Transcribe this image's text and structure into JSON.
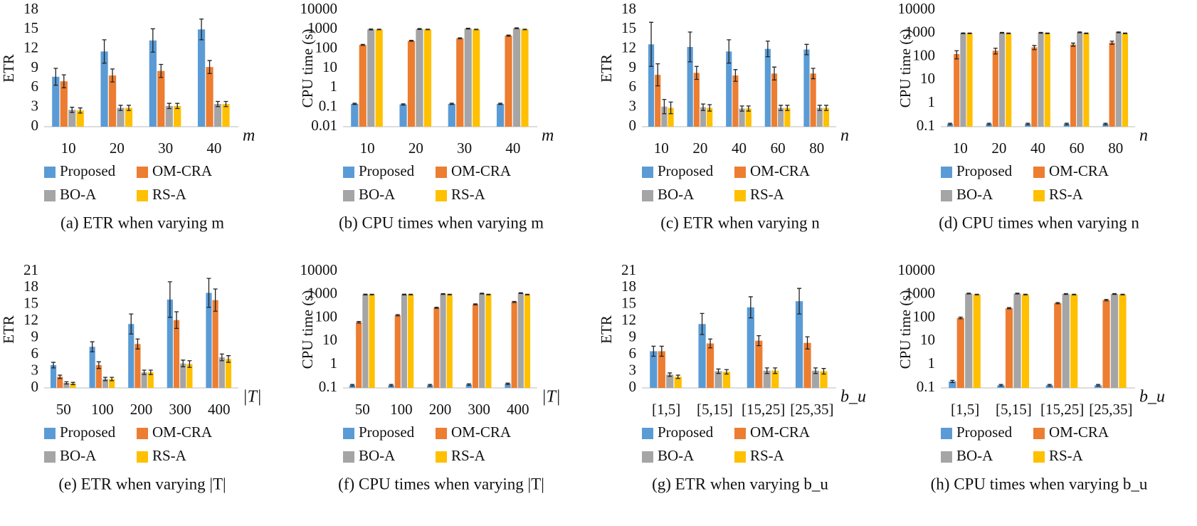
{
  "chart_data": [
    {
      "type": "bar",
      "caption": "(a) ETR when varying m",
      "ylabel": "ETR",
      "xlabel": "m",
      "log_scale": false,
      "categories": [
        "10",
        "20",
        "30",
        "40"
      ],
      "ylim": [
        0,
        18
      ],
      "yticks": [
        0,
        3,
        6,
        9,
        12,
        15,
        18
      ],
      "series": [
        {
          "name": "Proposed",
          "color": "#5b9bd5",
          "values": [
            7.7,
            11.6,
            13.3,
            15.0
          ],
          "errors": [
            1.3,
            1.8,
            1.8,
            1.6
          ]
        },
        {
          "name": "OM-CRA",
          "color": "#ed7d31",
          "values": [
            7.0,
            7.9,
            8.6,
            9.2
          ],
          "errors": [
            1.0,
            1.0,
            1.0,
            1.0
          ]
        },
        {
          "name": "BO-A",
          "color": "#a5a5a5",
          "values": [
            2.6,
            2.9,
            3.2,
            3.5
          ],
          "errors": [
            0.4,
            0.4,
            0.4,
            0.4
          ]
        },
        {
          "name": "RS-A",
          "color": "#ffc000",
          "values": [
            2.5,
            2.9,
            3.2,
            3.5
          ],
          "errors": [
            0.4,
            0.4,
            0.4,
            0.4
          ]
        }
      ]
    },
    {
      "type": "bar",
      "caption": "(b) CPU times when varying m",
      "ylabel": "CPU time (s)",
      "xlabel": "m",
      "log_scale": true,
      "categories": [
        "10",
        "20",
        "30",
        "40"
      ],
      "ylim": [
        0.01,
        10000
      ],
      "yticks": [
        0.01,
        0.1,
        1,
        10,
        100,
        1000,
        10000
      ],
      "series": [
        {
          "name": "Proposed",
          "color": "#5b9bd5",
          "values": [
            0.15,
            0.14,
            0.15,
            0.15
          ],
          "errors": [
            0.01,
            0.01,
            0.01,
            0.01
          ]
        },
        {
          "name": "OM-CRA",
          "color": "#ed7d31",
          "values": [
            160,
            260,
            350,
            480
          ],
          "errors": [
            10,
            15,
            20,
            30
          ]
        },
        {
          "name": "BO-A",
          "color": "#a5a5a5",
          "values": [
            1000,
            1050,
            1100,
            1150
          ],
          "errors": [
            50,
            50,
            50,
            50
          ]
        },
        {
          "name": "RS-A",
          "color": "#ffc000",
          "values": [
            1000,
            1000,
            1000,
            1000
          ],
          "errors": [
            30,
            30,
            30,
            30
          ]
        }
      ]
    },
    {
      "type": "bar",
      "caption": "(c) ETR when varying n",
      "ylabel": "ETR",
      "xlabel": "n",
      "log_scale": false,
      "categories": [
        "10",
        "20",
        "40",
        "60",
        "80"
      ],
      "ylim": [
        0,
        18
      ],
      "yticks": [
        0,
        3,
        6,
        9,
        12,
        15,
        18
      ],
      "series": [
        {
          "name": "Proposed",
          "color": "#5b9bd5",
          "values": [
            12.7,
            12.3,
            11.6,
            12.0,
            11.9
          ],
          "errors": [
            3.4,
            2.3,
            1.8,
            1.2,
            0.8
          ]
        },
        {
          "name": "OM-CRA",
          "color": "#ed7d31",
          "values": [
            8.0,
            8.3,
            7.9,
            8.2,
            8.2
          ],
          "errors": [
            1.7,
            1.0,
            0.9,
            1.0,
            0.8
          ]
        },
        {
          "name": "BO-A",
          "color": "#a5a5a5",
          "values": [
            3.1,
            3.0,
            2.8,
            2.9,
            2.9
          ],
          "errors": [
            1.1,
            0.5,
            0.4,
            0.4,
            0.4
          ]
        },
        {
          "name": "RS-A",
          "color": "#ffc000",
          "values": [
            2.9,
            2.9,
            2.8,
            2.9,
            2.9
          ],
          "errors": [
            0.9,
            0.5,
            0.4,
            0.4,
            0.4
          ]
        }
      ]
    },
    {
      "type": "bar",
      "caption": "(d) CPU times when varying n",
      "ylabel": "CPU time (s)",
      "xlabel": "n",
      "log_scale": true,
      "categories": [
        "10",
        "20",
        "40",
        "60",
        "80"
      ],
      "ylim": [
        0.1,
        10000
      ],
      "yticks": [
        0.1,
        1,
        10,
        100,
        1000,
        10000
      ],
      "series": [
        {
          "name": "Proposed",
          "color": "#5b9bd5",
          "values": [
            0.13,
            0.13,
            0.13,
            0.13,
            0.13
          ],
          "errors": [
            0.01,
            0.01,
            0.01,
            0.01,
            0.01
          ]
        },
        {
          "name": "OM-CRA",
          "color": "#ed7d31",
          "values": [
            130,
            180,
            250,
            330,
            400
          ],
          "errors": [
            50,
            50,
            50,
            50,
            60
          ]
        },
        {
          "name": "BO-A",
          "color": "#a5a5a5",
          "values": [
            1000,
            1050,
            1050,
            1100,
            1100
          ],
          "errors": [
            40,
            40,
            40,
            40,
            40
          ]
        },
        {
          "name": "RS-A",
          "color": "#ffc000",
          "values": [
            1000,
            1000,
            1000,
            1000,
            1000
          ],
          "errors": [
            30,
            30,
            30,
            30,
            30
          ]
        }
      ]
    },
    {
      "type": "bar",
      "caption": "(e) ETR when varying |T|",
      "ylabel": "ETR",
      "xlabel": "|T|",
      "log_scale": false,
      "categories": [
        "50",
        "100",
        "200",
        "300",
        "400"
      ],
      "ylim": [
        0,
        21
      ],
      "yticks": [
        0,
        3,
        6,
        9,
        12,
        15,
        18,
        21
      ],
      "series": [
        {
          "name": "Proposed",
          "color": "#5b9bd5",
          "values": [
            4.1,
            7.4,
            11.5,
            15.9,
            17.1
          ],
          "errors": [
            0.5,
            0.9,
            1.8,
            3.2,
            2.6
          ]
        },
        {
          "name": "OM-CRA",
          "color": "#ed7d31",
          "values": [
            2.0,
            4.1,
            7.9,
            12.2,
            15.8
          ],
          "errors": [
            0.3,
            0.6,
            0.9,
            1.5,
            2.0
          ]
        },
        {
          "name": "BO-A",
          "color": "#a5a5a5",
          "values": [
            0.9,
            1.6,
            2.8,
            4.4,
            5.5
          ],
          "errors": [
            0.2,
            0.3,
            0.4,
            0.6,
            0.6
          ]
        },
        {
          "name": "RS-A",
          "color": "#ffc000",
          "values": [
            0.8,
            1.6,
            2.8,
            4.3,
            5.2
          ],
          "errors": [
            0.2,
            0.3,
            0.4,
            0.6,
            0.6
          ]
        }
      ]
    },
    {
      "type": "bar",
      "caption": "(f) CPU times when varying |T|",
      "ylabel": "CPU time (s)",
      "xlabel": "|T|",
      "log_scale": true,
      "categories": [
        "50",
        "100",
        "200",
        "300",
        "400"
      ],
      "ylim": [
        0.1,
        10000
      ],
      "yticks": [
        0.1,
        1,
        10,
        100,
        1000,
        10000
      ],
      "series": [
        {
          "name": "Proposed",
          "color": "#5b9bd5",
          "values": [
            0.13,
            0.13,
            0.13,
            0.14,
            0.15
          ],
          "errors": [
            0.01,
            0.01,
            0.01,
            0.01,
            0.01
          ]
        },
        {
          "name": "OM-CRA",
          "color": "#ed7d31",
          "values": [
            65,
            130,
            270,
            380,
            480
          ],
          "errors": [
            5,
            8,
            15,
            20,
            25
          ]
        },
        {
          "name": "BO-A",
          "color": "#a5a5a5",
          "values": [
            1000,
            1000,
            1050,
            1100,
            1150
          ],
          "errors": [
            40,
            40,
            40,
            40,
            40
          ]
        },
        {
          "name": "RS-A",
          "color": "#ffc000",
          "values": [
            1000,
            1000,
            1000,
            1000,
            1000
          ],
          "errors": [
            30,
            30,
            30,
            30,
            30
          ]
        }
      ]
    },
    {
      "type": "bar",
      "caption": "(g) ETR when varying b_u",
      "ylabel": "ETR",
      "xlabel": "b_u",
      "log_scale": false,
      "categories": [
        "[1,5]",
        "[5,15]",
        "[15,25]",
        "[25,35]"
      ],
      "ylim": [
        0,
        21
      ],
      "yticks": [
        0,
        3,
        6,
        9,
        12,
        15,
        18,
        21
      ],
      "series": [
        {
          "name": "Proposed",
          "color": "#5b9bd5",
          "values": [
            6.6,
            11.5,
            14.5,
            15.6
          ],
          "errors": [
            0.9,
            1.9,
            1.9,
            2.3
          ]
        },
        {
          "name": "OM-CRA",
          "color": "#ed7d31",
          "values": [
            6.6,
            8.0,
            8.5,
            8.1
          ],
          "errors": [
            0.9,
            0.8,
            0.9,
            1.1
          ]
        },
        {
          "name": "BO-A",
          "color": "#a5a5a5",
          "values": [
            2.4,
            3.0,
            3.1,
            3.1
          ],
          "errors": [
            0.3,
            0.4,
            0.5,
            0.5
          ]
        },
        {
          "name": "RS-A",
          "color": "#ffc000",
          "values": [
            2.0,
            2.9,
            3.1,
            3.0
          ],
          "errors": [
            0.3,
            0.4,
            0.5,
            0.5
          ]
        }
      ]
    },
    {
      "type": "bar",
      "caption": "(h) CPU times when varying b_u",
      "ylabel": "CPU time (s)",
      "xlabel": "b_u",
      "log_scale": true,
      "categories": [
        "[1,5]",
        "[5,15]",
        "[15,25]",
        "[25,35]"
      ],
      "ylim": [
        0.1,
        10000
      ],
      "yticks": [
        0.1,
        1,
        10,
        100,
        1000,
        10000
      ],
      "series": [
        {
          "name": "Proposed",
          "color": "#5b9bd5",
          "values": [
            0.19,
            0.13,
            0.13,
            0.13
          ],
          "errors": [
            0.02,
            0.01,
            0.01,
            0.01
          ]
        },
        {
          "name": "OM-CRA",
          "color": "#ed7d31",
          "values": [
            100,
            260,
            430,
            580
          ],
          "errors": [
            8,
            15,
            25,
            40
          ]
        },
        {
          "name": "BO-A",
          "color": "#a5a5a5",
          "values": [
            1100,
            1100,
            1050,
            1050
          ],
          "errors": [
            40,
            40,
            40,
            40
          ]
        },
        {
          "name": "RS-A",
          "color": "#ffc000",
          "values": [
            1000,
            1000,
            1000,
            1000
          ],
          "errors": [
            30,
            30,
            30,
            30
          ]
        }
      ]
    }
  ]
}
